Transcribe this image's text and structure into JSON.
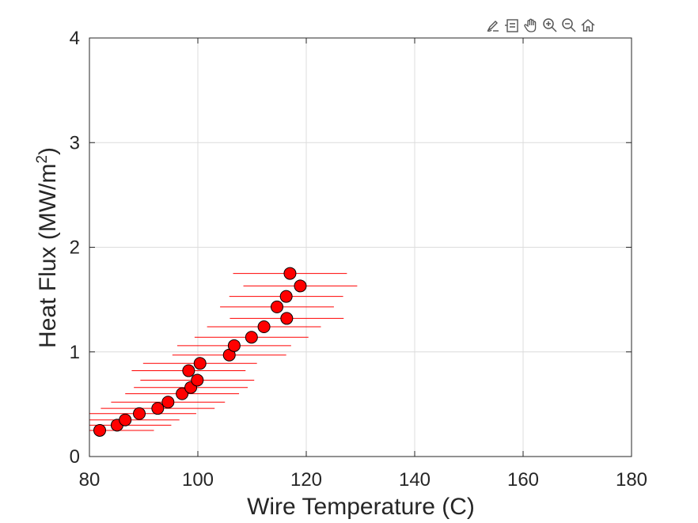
{
  "toolbar": {
    "buttons": [
      {
        "name": "brush-icon"
      },
      {
        "name": "datatip-icon"
      },
      {
        "name": "pan-hand-icon"
      },
      {
        "name": "zoom-in-icon"
      },
      {
        "name": "zoom-out-icon"
      },
      {
        "name": "home-icon"
      }
    ]
  },
  "colors": {
    "marker_fill": "#ff0000",
    "marker_edge": "#000000",
    "errorbar": "#ff0000",
    "grid": "#dcdcdc",
    "axis": "#262626"
  },
  "chart_data": {
    "type": "scatter",
    "xlabel": "Wire Temperature (C)",
    "ylabel_main": "Heat  Flux  (MW/m",
    "ylabel_sup": "2",
    "ylabel_end": ")",
    "xlim": [
      80,
      180
    ],
    "ylim": [
      0,
      4
    ],
    "xticks": [
      80,
      100,
      120,
      140,
      160,
      180
    ],
    "yticks": [
      0,
      1,
      2,
      3,
      4
    ],
    "xtick_labels": [
      "80",
      "100",
      "120",
      "140",
      "160",
      "180"
    ],
    "ytick_labels": [
      "0",
      "1",
      "2",
      "3",
      "4"
    ],
    "grid": true,
    "box": true,
    "series": [
      {
        "points": [
          {
            "x": 81.9,
            "y": 0.25,
            "xerr": 10.0
          },
          {
            "x": 85.1,
            "y": 0.3,
            "xerr": 10.0
          },
          {
            "x": 86.6,
            "y": 0.35,
            "xerr": 10.0
          },
          {
            "x": 89.2,
            "y": 0.41,
            "xerr": 10.5
          },
          {
            "x": 92.6,
            "y": 0.46,
            "xerr": 10.5
          },
          {
            "x": 94.5,
            "y": 0.52,
            "xerr": 10.5
          },
          {
            "x": 97.1,
            "y": 0.6,
            "xerr": 10.5
          },
          {
            "x": 98.7,
            "y": 0.66,
            "xerr": 10.5
          },
          {
            "x": 99.9,
            "y": 0.73,
            "xerr": 10.5
          },
          {
            "x": 98.3,
            "y": 0.82,
            "xerr": 10.5
          },
          {
            "x": 100.4,
            "y": 0.89,
            "xerr": 10.5
          },
          {
            "x": 105.8,
            "y": 0.97,
            "xerr": 10.5
          },
          {
            "x": 106.7,
            "y": 1.06,
            "xerr": 10.5
          },
          {
            "x": 109.9,
            "y": 1.14,
            "xerr": 10.5
          },
          {
            "x": 112.2,
            "y": 1.24,
            "xerr": 10.5
          },
          {
            "x": 116.4,
            "y": 1.32,
            "xerr": 10.5
          },
          {
            "x": 114.6,
            "y": 1.43,
            "xerr": 10.5
          },
          {
            "x": 116.3,
            "y": 1.53,
            "xerr": 10.5
          },
          {
            "x": 118.9,
            "y": 1.63,
            "xerr": 10.5
          },
          {
            "x": 117.0,
            "y": 1.75,
            "xerr": 10.5
          }
        ],
        "marker": "circle"
      }
    ]
  }
}
